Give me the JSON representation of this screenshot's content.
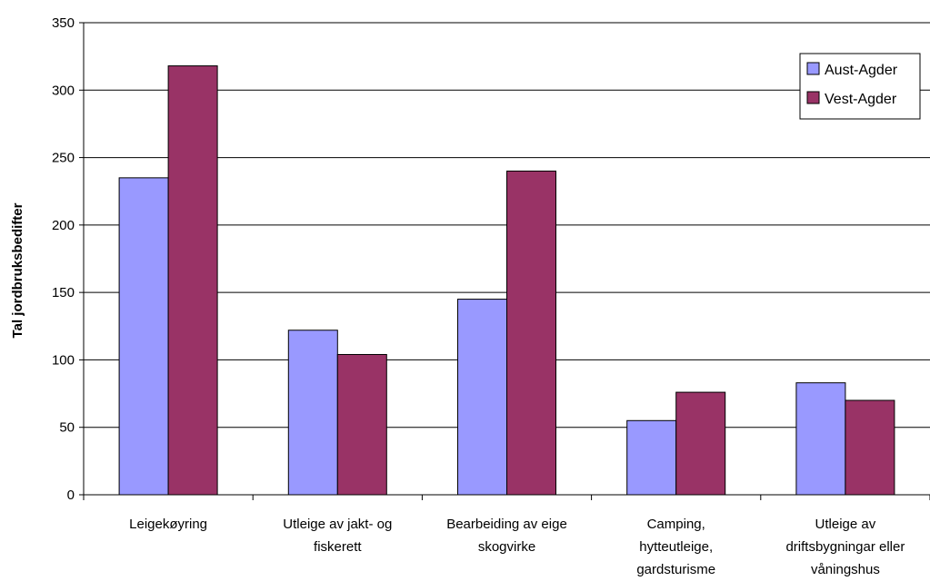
{
  "chart_data": {
    "type": "bar",
    "title": "",
    "xlabel": "",
    "ylabel": "Tal jordbruksbedifter",
    "ylim": [
      0,
      350
    ],
    "yticks": [
      0,
      50,
      100,
      150,
      200,
      250,
      300,
      350
    ],
    "grid": true,
    "legend_position": "top-right",
    "categories": [
      [
        "Leigekøyring"
      ],
      [
        "Utleige av jakt- og",
        "fiskerett"
      ],
      [
        "Bearbeiding av eige",
        "skogvirke"
      ],
      [
        "Camping,",
        "hytteutleige,",
        "gardsturisme"
      ],
      [
        "Utleige av",
        "driftsbygningar eller",
        "våningshus"
      ]
    ],
    "series": [
      {
        "name": "Aust-Agder",
        "color": "#9999ff",
        "values": [
          235,
          122,
          145,
          55,
          83
        ]
      },
      {
        "name": "Vest-Agder",
        "color": "#993366",
        "values": [
          318,
          104,
          240,
          76,
          70
        ]
      }
    ]
  }
}
